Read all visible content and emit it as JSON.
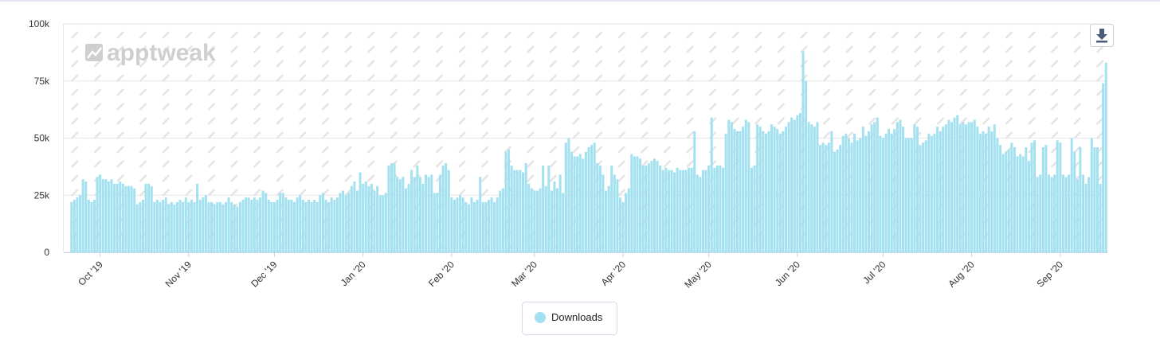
{
  "chart_data": {
    "type": "bar",
    "watermark": "apptweak",
    "categories": [
      null,
      null,
      null,
      null,
      null,
      null,
      null,
      null,
      null,
      null,
      "Oct '19",
      null,
      null,
      null,
      null,
      null,
      null,
      null,
      null,
      null,
      null,
      null,
      null,
      null,
      null,
      null,
      null,
      null,
      null,
      null,
      null,
      null,
      null,
      null,
      null,
      null,
      null,
      null,
      null,
      null,
      null,
      "Nov '19",
      null,
      null,
      null,
      null,
      null,
      null,
      null,
      null,
      null,
      null,
      null,
      null,
      null,
      null,
      null,
      null,
      null,
      null,
      null,
      null,
      null,
      null,
      null,
      null,
      null,
      null,
      null,
      null,
      null,
      "Dec '19",
      null,
      null,
      null,
      null,
      null,
      null,
      null,
      null,
      null,
      null,
      null,
      null,
      null,
      null,
      null,
      null,
      null,
      null,
      null,
      null,
      null,
      null,
      null,
      null,
      null,
      null,
      null,
      null,
      null,
      null,
      "Jan '20",
      null,
      null,
      null,
      null,
      null,
      null,
      null,
      null,
      null,
      null,
      null,
      null,
      null,
      null,
      null,
      null,
      null,
      null,
      null,
      null,
      null,
      null,
      null,
      null,
      null,
      null,
      null,
      null,
      null,
      null,
      "Feb '20",
      null,
      null,
      null,
      null,
      null,
      null,
      null,
      null,
      null,
      null,
      null,
      null,
      null,
      null,
      null,
      null,
      null,
      null,
      null,
      null,
      null,
      null,
      null,
      null,
      null,
      null,
      null,
      null,
      "Mar '20",
      null,
      null,
      null,
      null,
      null,
      null,
      null,
      null,
      null,
      null,
      null,
      null,
      null,
      null,
      null,
      null,
      null,
      null,
      null,
      null,
      null,
      null,
      null,
      null,
      null,
      null,
      null,
      null,
      null,
      null,
      "Apr '20",
      null,
      null,
      null,
      null,
      null,
      null,
      null,
      null,
      null,
      null,
      null,
      null,
      null,
      null,
      null,
      null,
      null,
      null,
      null,
      null,
      null,
      null,
      null,
      null,
      null,
      null,
      null,
      null,
      null,
      "May '20",
      null,
      null,
      null,
      null,
      null,
      null,
      null,
      null,
      null,
      null,
      null,
      null,
      null,
      null,
      null,
      null,
      null,
      null,
      null,
      null,
      null,
      null,
      null,
      null,
      null,
      null,
      null,
      null,
      null,
      null,
      "Jun '20",
      null,
      null,
      null,
      null,
      null,
      null,
      null,
      null,
      null,
      null,
      null,
      null,
      null,
      null,
      null,
      null,
      null,
      null,
      null,
      null,
      null,
      null,
      null,
      null,
      null,
      null,
      null,
      null,
      null,
      "Jul '20",
      null,
      null,
      null,
      null,
      null,
      null,
      null,
      null,
      null,
      null,
      null,
      null,
      null,
      null,
      null,
      null,
      null,
      null,
      null,
      null,
      null,
      null,
      null,
      null,
      null,
      null,
      null,
      null,
      null,
      null,
      "Aug '20",
      null,
      null,
      null,
      null,
      null,
      null,
      null,
      null,
      null,
      null,
      null,
      null,
      null,
      null,
      null,
      null,
      null,
      null,
      null,
      null,
      null,
      null,
      null,
      null,
      null,
      null,
      null,
      null,
      null,
      null,
      "Sep '20",
      null,
      null,
      null,
      null,
      null,
      null,
      null,
      null,
      null,
      null,
      null,
      null,
      null,
      null,
      null,
      null
    ],
    "series": [
      {
        "name": "Downloads",
        "color": "#a3e1f0",
        "values": [
          22000,
          23000,
          24000,
          25000,
          32000,
          31000,
          23000,
          22000,
          23000,
          33000,
          34000,
          32000,
          32000,
          31000,
          32000,
          30000,
          30000,
          31000,
          30000,
          29000,
          29000,
          29000,
          28000,
          21000,
          22000,
          23000,
          30000,
          30000,
          29000,
          22000,
          23000,
          22000,
          23000,
          24000,
          21000,
          22000,
          21000,
          22000,
          23000,
          22000,
          24000,
          22000,
          23000,
          22000,
          30000,
          23000,
          24000,
          25000,
          22000,
          22000,
          21000,
          22000,
          22000,
          21000,
          22000,
          24000,
          22000,
          21000,
          20000,
          22000,
          23000,
          24000,
          24000,
          23000,
          24000,
          23000,
          24000,
          27000,
          26000,
          23000,
          22000,
          22000,
          23000,
          26000,
          26000,
          24000,
          23000,
          23000,
          22000,
          24000,
          25000,
          23000,
          22000,
          23000,
          22000,
          23000,
          22000,
          25000,
          26000,
          23000,
          22000,
          24000,
          23000,
          24000,
          26000,
          27000,
          25000,
          26000,
          29000,
          31000,
          27000,
          35000,
          30000,
          31000,
          29000,
          30000,
          27000,
          29000,
          25000,
          25000,
          26000,
          38000,
          39000,
          39000,
          33000,
          32000,
          33000,
          28000,
          30000,
          36000,
          33000,
          38000,
          33000,
          30000,
          34000,
          33000,
          34000,
          26000,
          26000,
          34000,
          38000,
          39000,
          36000,
          24000,
          23000,
          24000,
          25000,
          24000,
          22000,
          21000,
          24000,
          22000,
          23000,
          33000,
          22000,
          22000,
          23000,
          24000,
          22000,
          24000,
          27000,
          28000,
          44000,
          45000,
          38000,
          36000,
          36000,
          36000,
          35000,
          39000,
          30000,
          28000,
          27000,
          27000,
          28000,
          38000,
          29000,
          38000,
          27000,
          31000,
          28000,
          34000,
          26000,
          48000,
          50000,
          44000,
          42000,
          42000,
          43000,
          41000,
          44000,
          46000,
          47000,
          48000,
          39000,
          38000,
          34000,
          27000,
          29000,
          38000,
          34000,
          32000,
          24000,
          22000,
          26000,
          28000,
          43000,
          42000,
          42000,
          41000,
          38000,
          38000,
          39000,
          40000,
          41000,
          40000,
          38000,
          36000,
          37000,
          36000,
          36000,
          35000,
          37000,
          36000,
          36000,
          36000,
          37000,
          37000,
          53000,
          34000,
          33000,
          36000,
          36000,
          38000,
          59000,
          37000,
          38000,
          38000,
          37000,
          52000,
          58000,
          57000,
          54000,
          53000,
          53000,
          55000,
          58000,
          57000,
          37000,
          38000,
          56000,
          55000,
          53000,
          52000,
          53000,
          56000,
          55000,
          54000,
          52000,
          53000,
          55000,
          57000,
          59000,
          58000,
          60000,
          61000,
          88000,
          75000,
          57000,
          56000,
          55000,
          57000,
          47000,
          48000,
          47000,
          48000,
          53000,
          44000,
          45000,
          47000,
          51000,
          52000,
          50000,
          48000,
          52000,
          49000,
          50000,
          55000,
          51000,
          53000,
          56000,
          57000,
          59000,
          51000,
          50000,
          52000,
          54000,
          52000,
          54000,
          57000,
          58000,
          55000,
          50000,
          50000,
          50000,
          56000,
          55000,
          47000,
          48000,
          49000,
          52000,
          51000,
          52000,
          55000,
          53000,
          55000,
          56000,
          58000,
          57000,
          59000,
          60000,
          56000,
          57000,
          56000,
          57000,
          57000,
          58000,
          55000,
          52000,
          53000,
          52000,
          55000,
          53000,
          56000,
          50000,
          47000,
          43000,
          44000,
          45000,
          48000,
          46000,
          42000,
          43000,
          42000,
          46000,
          40000,
          48000,
          49000,
          33000,
          34000,
          46000,
          47000,
          34000,
          33000,
          34000,
          49000,
          48000,
          34000,
          33000,
          34000,
          50000,
          44000,
          32000,
          46000,
          34000,
          30000,
          33000,
          50000,
          46000,
          46000,
          30000,
          74000,
          83000
        ]
      }
    ],
    "ylim": [
      0,
      100000
    ],
    "yticks": [
      0,
      {
        "value": 25000,
        "label": "25k"
      },
      {
        "value": 50000,
        "label": "50k"
      },
      {
        "value": 75000,
        "label": "75k"
      },
      {
        "value": 100000,
        "label": "100k"
      }
    ],
    "grid": true
  }
}
